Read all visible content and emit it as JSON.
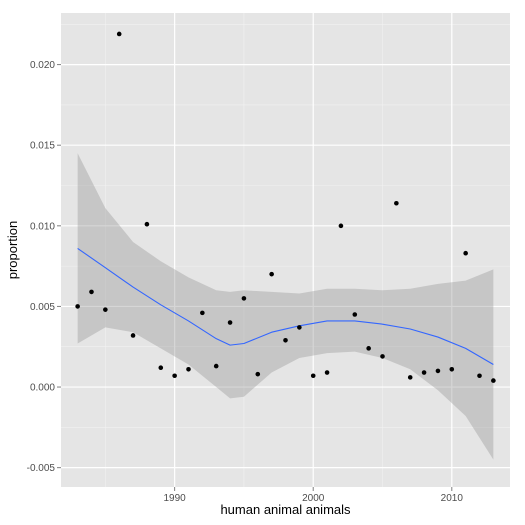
{
  "chart_data": {
    "type": "scatter",
    "xlabel": "human animal animals",
    "ylabel": "proportion",
    "xlim": [
      1981.8,
      2014.2
    ],
    "ylim": [
      -0.0062,
      0.0232
    ],
    "x_ticks": [
      1990,
      2000,
      2010
    ],
    "x_tick_labels": [
      "1990",
      "2000",
      "2010"
    ],
    "y_ticks": [
      -0.005,
      0.0,
      0.005,
      0.01,
      0.015,
      0.02
    ],
    "y_tick_labels": [
      "-0.005",
      "0.000",
      "0.005",
      "0.010",
      "0.015",
      "0.020"
    ],
    "grid": true,
    "points": [
      {
        "x": 1983,
        "y": 0.005
      },
      {
        "x": 1984,
        "y": 0.0059
      },
      {
        "x": 1985,
        "y": 0.0048
      },
      {
        "x": 1986,
        "y": 0.0219
      },
      {
        "x": 1987,
        "y": 0.0032
      },
      {
        "x": 1988,
        "y": 0.0101
      },
      {
        "x": 1989,
        "y": 0.0012
      },
      {
        "x": 1990,
        "y": 0.0007
      },
      {
        "x": 1991,
        "y": 0.0011
      },
      {
        "x": 1992,
        "y": 0.0046
      },
      {
        "x": 1993,
        "y": 0.0013
      },
      {
        "x": 1994,
        "y": 0.004
      },
      {
        "x": 1995,
        "y": 0.0055
      },
      {
        "x": 1996,
        "y": 0.0008
      },
      {
        "x": 1997,
        "y": 0.007
      },
      {
        "x": 1998,
        "y": 0.0029
      },
      {
        "x": 1999,
        "y": 0.0037
      },
      {
        "x": 2000,
        "y": 0.0007
      },
      {
        "x": 2001,
        "y": 0.0009
      },
      {
        "x": 2002,
        "y": 0.01
      },
      {
        "x": 2003,
        "y": 0.0045
      },
      {
        "x": 2004,
        "y": 0.0024
      },
      {
        "x": 2005,
        "y": 0.0019
      },
      {
        "x": 2006,
        "y": 0.0114
      },
      {
        "x": 2007,
        "y": 0.0006
      },
      {
        "x": 2008,
        "y": 0.0009
      },
      {
        "x": 2009,
        "y": 0.001
      },
      {
        "x": 2010,
        "y": 0.0011
      },
      {
        "x": 2011,
        "y": 0.0083
      },
      {
        "x": 2012,
        "y": 0.0007
      },
      {
        "x": 2013,
        "y": 0.0004
      }
    ],
    "smooth": {
      "x": [
        1983,
        1985,
        1987,
        1989,
        1991,
        1993,
        1994,
        1995,
        1997,
        1999,
        2001,
        2003,
        2005,
        2007,
        2009,
        2011,
        2013
      ],
      "y": [
        0.0086,
        0.0074,
        0.0062,
        0.0051,
        0.0041,
        0.003,
        0.0026,
        0.0027,
        0.0034,
        0.0038,
        0.0041,
        0.0041,
        0.0039,
        0.0036,
        0.0031,
        0.0024,
        0.0014
      ],
      "lower": [
        0.0027,
        0.0037,
        0.0034,
        0.0024,
        0.0014,
        0.0,
        -0.0007,
        -0.0006,
        0.0009,
        0.0018,
        0.0021,
        0.0022,
        0.0018,
        0.0011,
        -0.0002,
        -0.0018,
        -0.0045
      ],
      "upper": [
        0.0145,
        0.0111,
        0.009,
        0.0078,
        0.0068,
        0.006,
        0.0059,
        0.006,
        0.0059,
        0.0058,
        0.0061,
        0.0061,
        0.006,
        0.0061,
        0.0064,
        0.0066,
        0.0073
      ]
    },
    "colors": {
      "panel": "#e5e5e5",
      "grid_major": "#ffffff",
      "grid_minor": "#f2f2f2",
      "points": "#000000",
      "line": "#3366ff",
      "ribbon": "#999999"
    }
  }
}
